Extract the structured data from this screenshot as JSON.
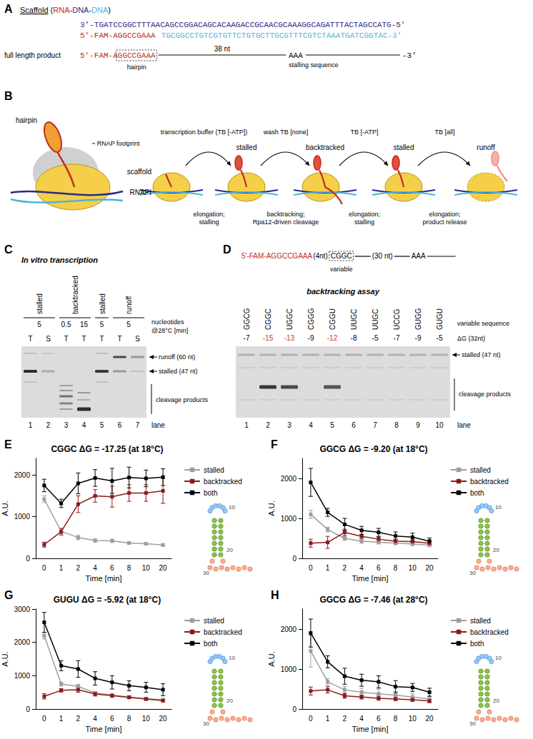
{
  "panels": {
    "A": {
      "label": "A",
      "scaffold_title": [
        "Scaffold",
        " (",
        "RNA",
        "-",
        "DNA",
        "-",
        "DNA",
        ")"
      ],
      "scaffold_colors": [
        "#000000",
        "#000000",
        "#c62828",
        "#000000",
        "#2c2a85",
        "#000000",
        "#4fb3d9",
        "#000000"
      ],
      "template": "3'-TGATCCGGCTTTAACAGCCGGACAGCACAAGACCGCAACGCAAAGGCAGATTTACTAGCCATG-5'",
      "rna": "5'-FAM-AGGCCGAAA",
      "nontemplate": "TGCGGCCTGTCGTGTTCTGTGCTTGCGTTTCGTCTAAATGATCGGTAC-3'",
      "product_label": "full length product",
      "product_prefix": "5'-FAM-A",
      "product_hairpin": "GGCCGAAA",
      "hairpin_label": "hairpin",
      "length": "38 nt",
      "stall": "AAA",
      "stall_label": "stalling sequence",
      "end": "-3'"
    },
    "B": {
      "label": "B",
      "hairpin": "hairpin",
      "footprint": "~ RNAP footprint",
      "scaffold": "scaffold",
      "rnap": "RNAPI",
      "steps": [
        {
          "buffer": "transcription buffer (TB [-ATP])",
          "state": "stalled",
          "action": [
            "elongation;",
            "stalling"
          ]
        },
        {
          "buffer": "wash TB [none]",
          "state": "backtracked",
          "action": [
            "backtracking;",
            "Rpa12-driven cleavage"
          ]
        },
        {
          "buffer": "TB [-ATP]",
          "state": "stalled",
          "action": [
            "elongation;",
            "stalling"
          ]
        },
        {
          "buffer": "TB [all]",
          "state": "runoff",
          "action": [
            "elongation;",
            "product release"
          ]
        }
      ]
    },
    "C": {
      "label": "C",
      "title": "In vitro transcription",
      "lane_headers": [
        {
          "text": "stalled",
          "lanes": [
            1,
            2
          ]
        },
        {
          "text": "backtracked",
          "lanes": [
            3,
            4
          ]
        },
        {
          "text": "stalled",
          "lanes": [
            5
          ]
        },
        {
          "text": "runoff",
          "lanes": [
            6,
            7
          ]
        }
      ],
      "times": [
        {
          "value": 5,
          "lanes": [
            1,
            2
          ]
        },
        {
          "value": 0.5,
          "lanes": [
            3
          ]
        },
        {
          "value": 15,
          "lanes": [
            4
          ]
        },
        {
          "value": 5,
          "lanes": [
            5
          ]
        },
        {
          "value": 5,
          "lanes": [
            6,
            7
          ]
        }
      ],
      "times_label": [
        "nucleotides",
        "@28°C [min]"
      ],
      "fractions": [
        "T",
        "S",
        "T",
        "T",
        "T",
        "T",
        "S"
      ],
      "lane_label": "lane",
      "lanes": [
        1,
        2,
        3,
        4,
        5,
        6,
        7
      ],
      "band_labels": [
        "runoff (60 nt)",
        "stalled (47 nt)",
        "cleavage products"
      ]
    },
    "D": {
      "label": "D",
      "construct": [
        "5'-FAM-AGGCCGAAA",
        "(4nt)",
        "CGGC",
        "(30 nt)",
        "AAA"
      ],
      "variable_label": "variable",
      "title": "backtracking assay",
      "sequences": [
        "GGCG",
        "CGGC",
        "UGGC",
        "CGGG",
        "CGGU",
        "UUGC",
        "UUGC",
        "UCCG",
        "GUGG",
        "GUGU"
      ],
      "sequence_label": "variable sequence",
      "dG": [
        -7,
        -15,
        -13,
        -9,
        -12,
        -8,
        -5,
        -7,
        -9,
        -5
      ],
      "dG_colors": [
        "#000000",
        "#d32f2f",
        "#d32f2f",
        "#000000",
        "#d32f2f",
        "#000000",
        "#000000",
        "#000000",
        "#000000",
        "#000000"
      ],
      "dG_label": "ΔG (32nt)",
      "lane_label": "lane",
      "lanes": [
        1,
        2,
        3,
        4,
        5,
        6,
        7,
        8,
        9,
        10
      ],
      "band_labels": [
        "stalled (47 nt)",
        "cleavage products"
      ]
    }
  },
  "chart_data": [
    {
      "type": "line",
      "panel_label": "E",
      "title": "CGGC ΔG = -17.25 (at 18°C)",
      "x_label": "Time [min]",
      "y_label": "A.U.",
      "categories": [
        "0",
        "1",
        "2",
        "4",
        "6",
        "8",
        "10",
        "20"
      ],
      "ylim": [
        0,
        2400
      ],
      "yticks": [
        0,
        1000,
        2000
      ],
      "grid": false,
      "legend": "right",
      "marker": "square",
      "structure_labels": [
        "10",
        "20",
        "30"
      ],
      "series": [
        {
          "name": "stalled",
          "color": "#9e9e9e",
          "values": [
            1420,
            650,
            500,
            430,
            420,
            370,
            350,
            320
          ],
          "errors": [
            80,
            60,
            50,
            40,
            40,
            30,
            30,
            30
          ]
        },
        {
          "name": "backtracked",
          "color": "#8b1a1a",
          "values": [
            330,
            640,
            1300,
            1500,
            1480,
            1570,
            1570,
            1620
          ],
          "errors": [
            60,
            80,
            200,
            150,
            250,
            200,
            200,
            300
          ]
        },
        {
          "name": "both",
          "color": "#000000",
          "values": [
            1750,
            1320,
            1800,
            1930,
            1860,
            1940,
            1920,
            1950
          ],
          "errors": [
            150,
            100,
            250,
            200,
            300,
            250,
            200,
            200
          ]
        }
      ]
    },
    {
      "type": "line",
      "panel_label": "F",
      "title": "GGCG ΔG = -9.20 (at 18°C)",
      "x_label": "Time [min]",
      "y_label": "A.U.",
      "categories": [
        "0",
        "1",
        "2",
        "4",
        "6",
        "8",
        "10",
        "20"
      ],
      "ylim": [
        0,
        2500
      ],
      "yticks": [
        0,
        1000,
        2000
      ],
      "grid": false,
      "legend": "right",
      "marker": "square",
      "structure_labels": [
        "10",
        "20",
        "30"
      ],
      "series": [
        {
          "name": "stalled",
          "color": "#9e9e9e",
          "values": [
            1100,
            720,
            500,
            430,
            400,
            380,
            360,
            330
          ],
          "errors": [
            100,
            60,
            50,
            50,
            40,
            40,
            40,
            40
          ]
        },
        {
          "name": "backtracked",
          "color": "#8b1a1a",
          "values": [
            380,
            400,
            650,
            550,
            480,
            430,
            420,
            380
          ],
          "errors": [
            100,
            150,
            80,
            50,
            50,
            50,
            50,
            50
          ]
        },
        {
          "name": "both",
          "color": "#000000",
          "values": [
            1900,
            1150,
            850,
            700,
            650,
            560,
            530,
            430
          ],
          "errors": [
            350,
            100,
            150,
            100,
            100,
            100,
            100,
            80
          ]
        }
      ]
    },
    {
      "type": "line",
      "panel_label": "G",
      "title": "GUGU ΔG = -5.92 (at 18°C)",
      "x_label": "Time [min]",
      "y_label": "A.U.",
      "categories": [
        "0",
        "1",
        "2",
        "4",
        "6",
        "8",
        "10",
        "20"
      ],
      "ylim": [
        0,
        3000
      ],
      "yticks": [
        0,
        1000,
        2000,
        3000
      ],
      "grid": false,
      "legend": "right",
      "marker": "square",
      "structure_labels": [
        "10",
        "20",
        "30"
      ],
      "series": [
        {
          "name": "stalled",
          "color": "#9e9e9e",
          "values": [
            2200,
            750,
            680,
            480,
            420,
            360,
            310,
            280
          ],
          "errors": [
            100,
            60,
            60,
            50,
            40,
            40,
            30,
            30
          ]
        },
        {
          "name": "backtracked",
          "color": "#8b1a1a",
          "values": [
            380,
            560,
            580,
            450,
            400,
            350,
            300,
            250
          ],
          "errors": [
            80,
            50,
            80,
            60,
            50,
            40,
            40,
            30
          ]
        },
        {
          "name": "both",
          "color": "#000000",
          "values": [
            2600,
            1300,
            1200,
            920,
            800,
            700,
            650,
            580
          ],
          "errors": [
            300,
            150,
            250,
            200,
            200,
            150,
            150,
            180
          ]
        }
      ]
    },
    {
      "type": "line",
      "panel_label": "H",
      "title": "GGCG ΔG = -7.46 (at 28°C)",
      "x_label": "Time [min]",
      "y_label": "A.U.",
      "categories": [
        "0",
        "1",
        "2",
        "4",
        "6",
        "8",
        "10",
        "20"
      ],
      "ylim": [
        0,
        2500
      ],
      "yticks": [
        0,
        1000,
        2000
      ],
      "grid": false,
      "legend": "right",
      "marker": "square",
      "structure_labels": [
        "10",
        "20",
        "30"
      ],
      "series": [
        {
          "name": "stalled",
          "color": "#9e9e9e",
          "values": [
            1450,
            680,
            480,
            420,
            380,
            350,
            300,
            250
          ],
          "errors": [
            400,
            80,
            80,
            100,
            120,
            80,
            80,
            60
          ]
        },
        {
          "name": "backtracked",
          "color": "#8b1a1a",
          "values": [
            450,
            480,
            330,
            300,
            270,
            250,
            230,
            200
          ],
          "errors": [
            100,
            80,
            60,
            50,
            50,
            40,
            40,
            40
          ]
        },
        {
          "name": "both",
          "color": "#000000",
          "values": [
            1900,
            1180,
            820,
            720,
            680,
            560,
            540,
            420
          ],
          "errors": [
            350,
            150,
            200,
            150,
            150,
            150,
            100,
            100
          ]
        }
      ]
    }
  ]
}
